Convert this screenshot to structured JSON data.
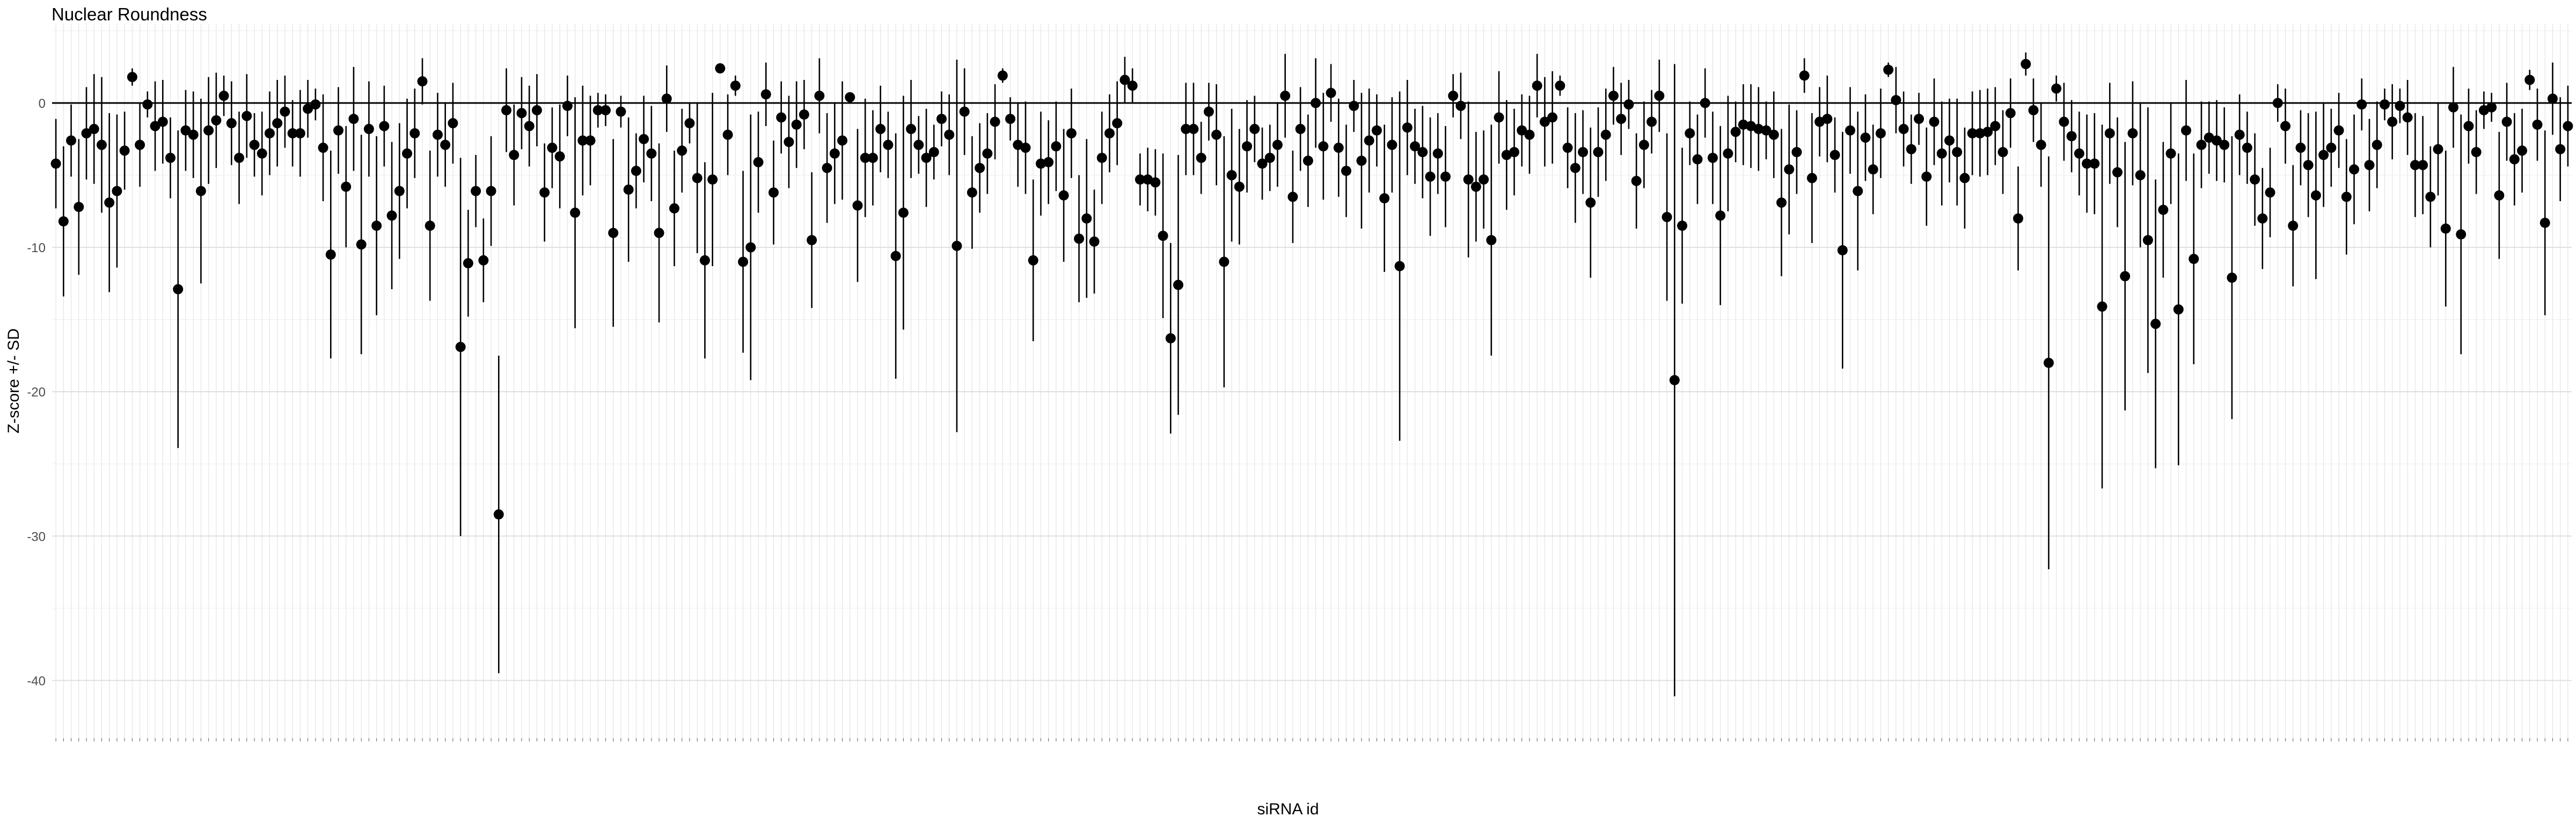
{
  "chart_data": {
    "type": "errorbar",
    "title": "Nuclear Roundness",
    "xlabel": "siRNA id",
    "ylabel": "Z-score +/- SD",
    "ylim": [
      -44,
      5.5
    ],
    "y_ticks": [
      0,
      -10,
      -20,
      -30,
      -40
    ],
    "y_tick_labels": [
      "0",
      "-10",
      "-20",
      "-30",
      "-40"
    ],
    "reference_line_y": 0,
    "grid": true,
    "n_points": 350,
    "x_tick_labels_note": "350 category labels (siRNA ids) drawn rotated beneath the axis; individually illegible in the source image",
    "values": [
      -4.2,
      -8.2,
      -2.6,
      -7.2,
      -2.1,
      -1.8,
      -2.9,
      -6.9,
      -6.1,
      -3.3,
      1.8,
      -2.9,
      -0.1,
      -1.6,
      -1.3,
      -3.8,
      -12.9,
      -1.9,
      -2.2,
      -6.1,
      -1.9,
      -1.2,
      0.5,
      -1.4,
      -3.8,
      -0.9,
      -2.9,
      -3.5,
      -2.1,
      -1.4,
      -0.6,
      -2.1,
      -2.1,
      -0.4,
      -0.1,
      -3.1,
      -10.5,
      -1.9,
      -5.8,
      -1.1,
      -9.8,
      -1.8,
      -8.5,
      -1.6,
      -7.8,
      -6.1,
      -3.5,
      -2.1,
      1.5,
      -8.5,
      -2.2,
      -2.9,
      -1.4,
      -16.9,
      -11.1,
      -6.1,
      -10.9,
      -6.1,
      -28.5,
      -0.5,
      -3.6,
      -0.7,
      -1.6,
      -0.5,
      -6.2,
      -3.1,
      -3.7,
      -0.2,
      -7.6,
      -2.6,
      -2.6,
      -0.5,
      -0.5,
      -9.0,
      -0.6,
      -6.0,
      -4.7,
      -2.5,
      -3.5,
      -9.0,
      0.3,
      -7.3,
      -3.3,
      -1.4,
      -5.2,
      -10.9,
      -5.3,
      2.4,
      -2.2,
      1.2,
      -11.0,
      -10.0,
      -4.1,
      0.6,
      -6.2,
      -1.0,
      -2.7,
      -1.5,
      -0.8,
      -9.5,
      0.5,
      -4.5,
      -3.5,
      -2.6,
      0.4,
      -7.1,
      -3.8,
      -3.8,
      -1.8,
      -2.9,
      -10.6,
      -7.6,
      -1.8,
      -2.9,
      -3.8,
      -3.4,
      -1.1,
      -2.2,
      -9.9,
      -0.6,
      -6.2,
      -4.5,
      -3.5,
      -1.3,
      1.9,
      -1.1,
      -2.9,
      -3.1,
      -10.9,
      -4.2,
      -4.1,
      -3.0,
      -6.4,
      -2.1,
      -9.4,
      -8.0,
      -9.6,
      -3.8,
      -2.1,
      -1.4,
      1.6,
      1.2,
      -5.3,
      -5.3,
      -5.5,
      -9.2,
      -16.3,
      -12.6,
      -1.8,
      -1.8,
      -3.8,
      -0.6,
      -2.2,
      -11.0,
      -5.0,
      -5.8,
      -3.0,
      -1.8,
      -4.2,
      -3.8,
      -2.9,
      0.5,
      -6.5,
      -1.8,
      -4.0,
      0.0,
      -3.0,
      0.7,
      -3.1,
      -4.7,
      -0.2,
      -4.0,
      -2.6,
      -1.9,
      -6.6,
      -2.9,
      -11.3,
      -1.7,
      -3.0,
      -3.4,
      -5.1,
      -3.5,
      -5.1,
      0.5,
      -0.2,
      -5.3,
      -5.8,
      -5.3,
      -9.5,
      -1.0,
      -3.6,
      -3.4,
      -1.9,
      -2.2,
      1.2,
      -1.3,
      -1.0,
      1.2,
      -3.1,
      -4.5,
      -3.4,
      -6.9,
      -3.4,
      -2.2,
      0.5,
      -1.1,
      -0.1,
      -5.4,
      -2.9,
      -1.3,
      0.5,
      -7.9,
      -19.2,
      -8.5,
      -2.1,
      -3.9,
      0.0,
      -3.8,
      -7.8,
      -3.5,
      -2.0,
      -1.5,
      -1.6,
      -1.8,
      -1.9,
      -2.2,
      -6.9,
      -4.6,
      -3.4,
      1.9,
      -5.2,
      -1.3,
      -1.1,
      -3.6,
      -10.2,
      -1.9,
      -6.1,
      -2.4,
      -4.6,
      -2.1,
      2.3,
      0.2,
      -1.8,
      -3.2,
      -1.1,
      -5.1,
      -1.3,
      -3.5,
      -2.6,
      -3.4,
      -5.2,
      -2.1,
      -2.1,
      -2.0,
      -1.6,
      -3.4,
      -0.7,
      -8.0,
      2.7,
      -0.5,
      -2.9,
      -18.0,
      1.0,
      -1.3,
      -2.3,
      -3.5,
      -4.2,
      -4.2,
      -14.1,
      -2.1,
      -4.8,
      -12.0,
      -2.1,
      -5.0,
      -9.5,
      -15.3,
      -7.4,
      -3.5,
      -14.3,
      -1.9,
      -10.8,
      -2.9,
      -2.4,
      -2.6,
      -2.9,
      -12.1,
      -2.2,
      -3.1,
      -5.3,
      -8.0,
      -6.2,
      0.0,
      -1.6,
      -8.5,
      -3.1,
      -4.3,
      -6.4,
      -3.6,
      -3.1,
      -1.9,
      -6.5,
      -4.6,
      -0.1,
      -4.3,
      -2.9,
      -0.1,
      -1.3,
      -0.2,
      -1.0,
      -4.3,
      -4.3,
      -6.5,
      -3.2,
      -8.7,
      -0.3,
      -9.1,
      -1.6,
      -3.4,
      -0.5,
      -0.3,
      -6.4,
      -1.3,
      -3.9,
      -3.3,
      1.6,
      -1.5,
      -8.3,
      0.3,
      -3.2,
      -1.6
    ],
    "errors": [
      3.1,
      5.2,
      2.5,
      4.7,
      3.2,
      3.8,
      4.7,
      6.2,
      5.3,
      2.7,
      0.6,
      2.9,
      0.9,
      3.1,
      2.9,
      2.8,
      11.0,
      2.8,
      3.0,
      6.4,
      3.7,
      3.3,
      1.4,
      2.9,
      3.2,
      2.9,
      2.2,
      2.9,
      2.9,
      3.0,
      2.5,
      2.3,
      3.0,
      2.0,
      1.1,
      3.7,
      7.2,
      3.0,
      4.2,
      3.6,
      7.6,
      3.3,
      6.2,
      2.8,
      5.1,
      4.7,
      3.8,
      3.1,
      1.6,
      5.2,
      2.9,
      2.9,
      2.8,
      13.1,
      3.7,
      2.5,
      2.9,
      3.8,
      11.0,
      2.9,
      3.5,
      2.5,
      2.8,
      2.5,
      3.4,
      2.8,
      3.6,
      2.1,
      8.0,
      3.8,
      3.1,
      1.2,
      1.1,
      6.5,
      1.1,
      5.0,
      2.6,
      3.0,
      3.3,
      6.2,
      2.3,
      4.0,
      2.9,
      1.4,
      5.2,
      6.8,
      6.0,
      0.2,
      2.8,
      0.7,
      6.3,
      9.2,
      3.5,
      2.2,
      3.6,
      2.5,
      3.2,
      3.0,
      2.4,
      4.7,
      2.6,
      3.8,
      3.5,
      4.1,
      0.3,
      5.3,
      4.1,
      3.3,
      3.0,
      2.3,
      8.5,
      8.1,
      3.4,
      2.0,
      3.4,
      1.9,
      1.9,
      2.8,
      12.9,
      3.0,
      3.9,
      3.1,
      2.8,
      2.6,
      0.5,
      1.5,
      2.9,
      3.2,
      5.6,
      3.6,
      2.9,
      3.1,
      4.6,
      3.1,
      4.4,
      5.5,
      3.6,
      3.2,
      2.7,
      2.9,
      1.6,
      1.2,
      1.8,
      2.2,
      2.3,
      5.7,
      6.6,
      9.0,
      3.2,
      3.2,
      2.5,
      2.0,
      3.5,
      8.7,
      4.6,
      4.0,
      3.2,
      2.3,
      2.5,
      2.3,
      2.9,
      2.9,
      3.2,
      2.9,
      3.2,
      3.1,
      3.7,
      2.0,
      3.4,
      3.2,
      1.8,
      4.7,
      3.6,
      2.5,
      5.1,
      3.3,
      12.1,
      3.3,
      2.6,
      3.2,
      4.1,
      2.8,
      3.5,
      1.5,
      2.3,
      5.4,
      3.8,
      3.4,
      8.0,
      3.2,
      3.8,
      3.0,
      2.5,
      2.7,
      2.2,
      3.1,
      3.2,
      0.7,
      2.8,
      3.8,
      2.9,
      5.2,
      3.1,
      3.2,
      2.0,
      2.5,
      1.7,
      3.3,
      3.0,
      2.2,
      2.5,
      5.8,
      21.9,
      5.4,
      2.2,
      3.1,
      2.4,
      3.2,
      6.2,
      4.0,
      2.1,
      2.8,
      2.9,
      2.9,
      2.0,
      3.0,
      5.1,
      4.5,
      2.9,
      1.2,
      4.5,
      2.4,
      3.0,
      2.6,
      8.2,
      3.0,
      5.5,
      3.0,
      3.1,
      3.1,
      0.5,
      2.3,
      2.6,
      2.4,
      1.8,
      3.4,
      3.0,
      3.6,
      2.9,
      3.7,
      3.5,
      2.9,
      3.0,
      3.0,
      2.7,
      2.9,
      2.4,
      3.6,
      0.8,
      2.2,
      2.9,
      14.3,
      0.9,
      2.7,
      2.5,
      2.9,
      3.4,
      3.5,
      12.6,
      3.5,
      3.8,
      9.3,
      3.6,
      5.0,
      9.2,
      10.0,
      4.7,
      3.5,
      10.8,
      3.5,
      7.3,
      3.0,
      2.5,
      2.8,
      2.6,
      9.8,
      2.8,
      2.5,
      3.2,
      3.5,
      3.1,
      1.3,
      2.6,
      4.2,
      2.6,
      3.6,
      5.8,
      3.6,
      2.7,
      2.6,
      4.0,
      3.8,
      1.8,
      3.2,
      3.0,
      1.1,
      2.6,
      1.2,
      2.6,
      3.6,
      3.4,
      3.5,
      3.2,
      5.4,
      2.8,
      8.3,
      2.6,
      2.9,
      1.3,
      1.0,
      4.4,
      2.7,
      3.2,
      2.9,
      0.7,
      2.5,
      6.4,
      2.5,
      3.6,
      2.8
    ]
  }
}
